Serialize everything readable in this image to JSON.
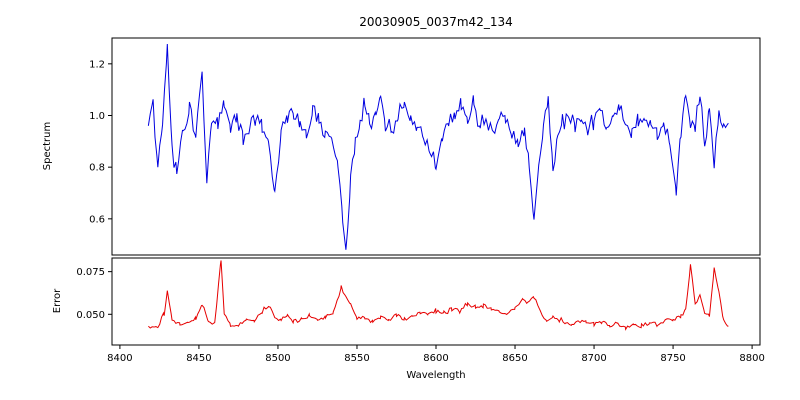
{
  "chart_data": {
    "type": "line",
    "title": "20030905_0037m42_134",
    "xlabel": "Wavelength",
    "xlim": [
      8395,
      8805
    ],
    "x_ticks": [
      8400,
      8450,
      8500,
      8550,
      8600,
      8650,
      8700,
      8750,
      8800
    ],
    "grid": false,
    "legend": null,
    "seed": 42,
    "panels": [
      {
        "name": "spectrum",
        "ylabel": "Spectrum",
        "ylim": [
          0.46,
          1.3
        ],
        "y_ticks": [
          0.6,
          0.8,
          1.0,
          1.2
        ],
        "y_tick_labels": [
          "0.6",
          "0.8",
          "1.0",
          "1.2"
        ],
        "color": "#0000e0",
        "noise_sigma": 0.034,
        "sample_step": 1.2,
        "anchors_x": [
          8418,
          8421,
          8424,
          8427,
          8430,
          8433,
          8436,
          8440,
          8444,
          8448,
          8452,
          8455,
          8458,
          8462,
          8466,
          8470,
          8474,
          8478,
          8482,
          8486,
          8490,
          8494,
          8498,
          8502,
          8506,
          8510,
          8514,
          8518,
          8522,
          8526,
          8530,
          8534,
          8538,
          8541,
          8543,
          8546,
          8549,
          8552,
          8555,
          8558,
          8562,
          8565,
          8568,
          8572,
          8576,
          8580,
          8584,
          8588,
          8592,
          8596,
          8600,
          8604,
          8608,
          8612,
          8616,
          8620,
          8624,
          8628,
          8632,
          8636,
          8640,
          8644,
          8648,
          8652,
          8656,
          8659,
          8662,
          8665,
          8668,
          8671,
          8674,
          8677,
          8680,
          8684,
          8688,
          8692,
          8696,
          8700,
          8704,
          8708,
          8712,
          8716,
          8720,
          8724,
          8728,
          8732,
          8736,
          8740,
          8744,
          8748,
          8752,
          8755,
          8758,
          8761,
          8764,
          8767,
          8770,
          8773,
          8776,
          8779,
          8782,
          8785
        ],
        "anchors_y": [
          0.97,
          1.04,
          0.8,
          0.97,
          1.25,
          0.85,
          0.78,
          0.95,
          1.02,
          0.92,
          1.16,
          0.73,
          1.0,
          0.96,
          1.05,
          0.94,
          1.0,
          0.91,
          0.96,
          1.0,
          0.95,
          0.9,
          0.68,
          0.95,
          0.99,
          1.02,
          0.96,
          0.93,
          1.03,
          0.98,
          0.94,
          0.91,
          0.82,
          0.6,
          0.48,
          0.76,
          0.9,
          0.95,
          1.06,
          0.96,
          1.0,
          1.08,
          0.97,
          0.94,
          1.0,
          1.04,
          0.98,
          0.95,
          0.92,
          0.88,
          0.79,
          0.92,
          0.97,
          1.0,
          1.04,
          0.99,
          1.05,
          0.96,
          0.98,
          0.94,
          0.97,
          1.0,
          0.92,
          0.88,
          0.94,
          0.8,
          0.59,
          0.8,
          0.95,
          1.08,
          0.78,
          0.93,
          0.98,
          1.0,
          0.96,
          1.0,
          0.94,
          0.98,
          1.01,
          0.95,
          0.99,
          1.03,
          0.97,
          0.94,
          0.98,
          1.0,
          0.96,
          0.92,
          0.96,
          0.9,
          0.7,
          0.95,
          1.08,
          0.93,
          0.97,
          1.1,
          0.86,
          1.05,
          0.8,
          1.02,
          0.95,
          0.97
        ]
      },
      {
        "name": "error",
        "ylabel": "Error",
        "ylim": [
          0.032,
          0.083
        ],
        "y_ticks": [
          0.05,
          0.075
        ],
        "y_tick_labels": [
          "0.050",
          "0.075"
        ],
        "color": "#e60000",
        "noise_sigma": 0.0013,
        "sample_step": 1.2,
        "anchors_x": [
          8418,
          8424,
          8428,
          8430,
          8433,
          8438,
          8443,
          8448,
          8452,
          8456,
          8460,
          8464,
          8466,
          8470,
          8475,
          8480,
          8485,
          8490,
          8494,
          8498,
          8502,
          8506,
          8510,
          8515,
          8520,
          8525,
          8530,
          8535,
          8540,
          8543,
          8546,
          8550,
          8555,
          8560,
          8565,
          8570,
          8575,
          8580,
          8585,
          8590,
          8595,
          8600,
          8605,
          8610,
          8615,
          8620,
          8625,
          8630,
          8635,
          8640,
          8645,
          8650,
          8655,
          8658,
          8662,
          8666,
          8670,
          8674,
          8678,
          8682,
          8686,
          8690,
          8695,
          8700,
          8705,
          8710,
          8715,
          8720,
          8725,
          8730,
          8735,
          8740,
          8745,
          8750,
          8755,
          8758,
          8761,
          8764,
          8767,
          8770,
          8773,
          8776,
          8779,
          8782,
          8785
        ],
        "anchors_y": [
          0.042,
          0.043,
          0.05,
          0.064,
          0.047,
          0.044,
          0.045,
          0.047,
          0.056,
          0.046,
          0.045,
          0.082,
          0.05,
          0.044,
          0.043,
          0.047,
          0.046,
          0.052,
          0.055,
          0.048,
          0.047,
          0.049,
          0.046,
          0.047,
          0.049,
          0.047,
          0.048,
          0.051,
          0.066,
          0.06,
          0.056,
          0.047,
          0.048,
          0.046,
          0.048,
          0.047,
          0.049,
          0.047,
          0.049,
          0.051,
          0.05,
          0.052,
          0.051,
          0.053,
          0.052,
          0.056,
          0.054,
          0.055,
          0.053,
          0.052,
          0.05,
          0.054,
          0.059,
          0.057,
          0.06,
          0.052,
          0.045,
          0.049,
          0.047,
          0.045,
          0.044,
          0.046,
          0.045,
          0.044,
          0.046,
          0.043,
          0.045,
          0.042,
          0.044,
          0.043,
          0.045,
          0.044,
          0.046,
          0.047,
          0.049,
          0.052,
          0.079,
          0.056,
          0.061,
          0.051,
          0.049,
          0.077,
          0.062,
          0.047,
          0.043
        ]
      }
    ]
  }
}
